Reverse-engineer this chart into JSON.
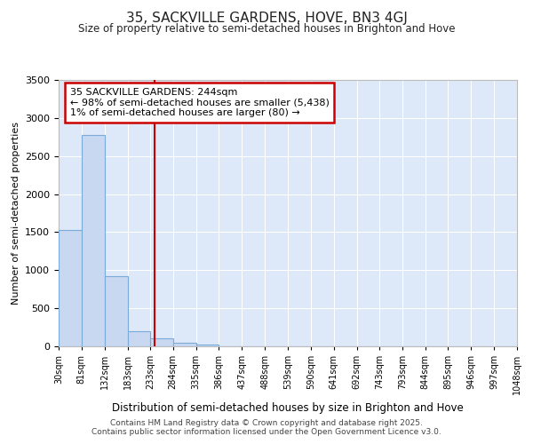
{
  "title": "35, SACKVILLE GARDENS, HOVE, BN3 4GJ",
  "subtitle": "Size of property relative to semi-detached houses in Brighton and Hove",
  "xlabel": "Distribution of semi-detached houses by size in Brighton and Hove",
  "ylabel": "Number of semi-detached properties",
  "bin_labels": [
    "30sqm",
    "81sqm",
    "132sqm",
    "183sqm",
    "233sqm",
    "284sqm",
    "335sqm",
    "386sqm",
    "437sqm",
    "488sqm",
    "539sqm",
    "590sqm",
    "641sqm",
    "692sqm",
    "743sqm",
    "793sqm",
    "844sqm",
    "895sqm",
    "946sqm",
    "997sqm",
    "1048sqm"
  ],
  "bin_edges": [
    30,
    81,
    132,
    183,
    233,
    284,
    335,
    386,
    437,
    488,
    539,
    590,
    641,
    692,
    743,
    793,
    844,
    895,
    946,
    997,
    1048
  ],
  "values": [
    1530,
    2780,
    920,
    200,
    100,
    50,
    20,
    0,
    0,
    0,
    0,
    0,
    0,
    0,
    0,
    0,
    0,
    0,
    0,
    0
  ],
  "bar_color": "#c8d8f0",
  "bar_edge_color": "#7aabdb",
  "red_line_x": 244,
  "annotation_title": "35 SACKVILLE GARDENS: 244sqm",
  "annotation_line1": "← 98% of semi-detached houses are smaller (5,438)",
  "annotation_line2": "1% of semi-detached houses are larger (80) →",
  "annotation_box_color": "#cc0000",
  "ylim": [
    0,
    3500
  ],
  "fig_bg_color": "#ffffff",
  "plot_bg_color": "#dde8f8",
  "grid_color": "#ffffff",
  "footer1": "Contains HM Land Registry data © Crown copyright and database right 2025.",
  "footer2": "Contains public sector information licensed under the Open Government Licence v3.0."
}
